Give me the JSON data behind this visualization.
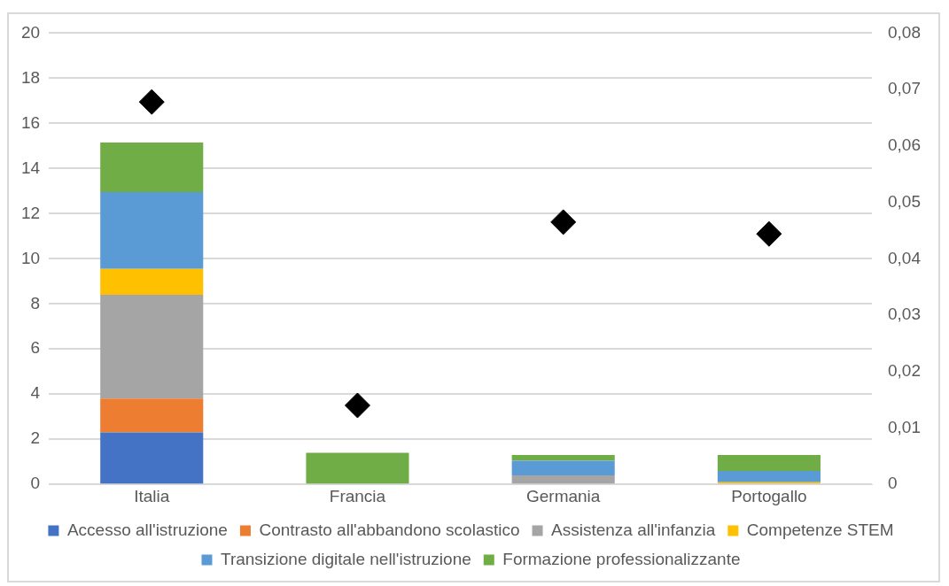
{
  "chart_data": {
    "type": "bar",
    "stacked": true,
    "categories": [
      "Italia",
      "Francia",
      "Germania",
      "Portogallo"
    ],
    "series": [
      {
        "name": "Accesso all'istruzione",
        "color": "#4472c4",
        "values": [
          2.3,
          0,
          0,
          0
        ]
      },
      {
        "name": "Contrasto all'abbandono scolastico",
        "color": "#ed7d31",
        "values": [
          1.5,
          0,
          0,
          0
        ]
      },
      {
        "name": "Assistenza all'infanzia",
        "color": "#a5a5a5",
        "values": [
          4.6,
          0,
          0.4,
          0
        ]
      },
      {
        "name": "Competenze STEM",
        "color": "#ffc000",
        "values": [
          1.15,
          0,
          0,
          0.1
        ]
      },
      {
        "name": "Transizione digitale nell'istruzione",
        "color": "#5b9bd5",
        "values": [
          3.4,
          0,
          0.65,
          0.5
        ]
      },
      {
        "name": "Formazione professionalizzante",
        "color": "#70ad47",
        "values": [
          2.2,
          1.4,
          0.25,
          0.7
        ]
      },
      {
        "type": "scatter",
        "axis": "y2",
        "color": "#000000",
        "marker": "diamond",
        "x": [
          "Italia",
          "Francia",
          "Germania",
          "Portogallo"
        ],
        "values": [
          0.0678,
          0.014,
          0.0465,
          0.0444
        ]
      }
    ],
    "ylim": [
      0,
      20
    ],
    "yticks": [
      0,
      2,
      4,
      6,
      8,
      10,
      12,
      14,
      16,
      18,
      20
    ],
    "y2lim": [
      0,
      0.08
    ],
    "y2ticks": [
      0,
      {
        "value": 0.01,
        "label": "0,01"
      },
      {
        "value": 0.02,
        "label": "0,02"
      },
      {
        "value": 0.03,
        "label": "0,03"
      },
      {
        "value": 0.04,
        "label": "0,04"
      },
      {
        "value": 0.05,
        "label": "0,05"
      },
      {
        "value": 0.06,
        "label": "0,06"
      },
      {
        "value": 0.07,
        "label": "0,07"
      },
      {
        "value": 0.08,
        "label": "0,08"
      }
    ],
    "grid": "y",
    "legend": "bottom"
  }
}
